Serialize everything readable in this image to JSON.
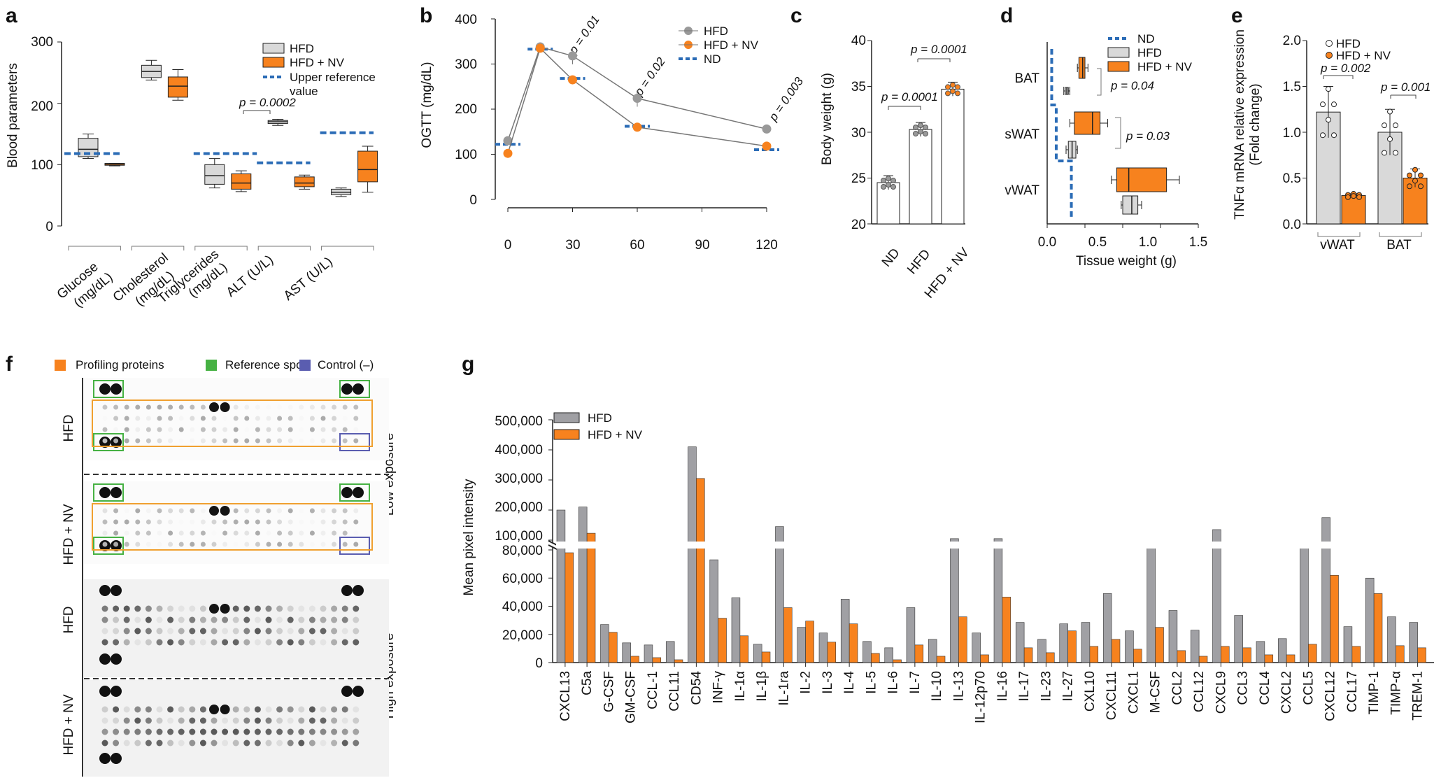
{
  "colors": {
    "hfd_box": "#d9d9d9",
    "nv": "#f7821e",
    "ref": "#2b6cb6",
    "gray_bar": "#a0a0a4",
    "green": "#46b143",
    "purple": "#5a5db0",
    "orange_box": "#f0a030",
    "dark": "#222222"
  },
  "panel_labels": {
    "a": "a",
    "b": "b",
    "c": "c",
    "d": "d",
    "e": "e",
    "f": "f",
    "g": "g"
  },
  "chart_data": [
    {
      "panel": "a",
      "type": "box",
      "ylabel": "Blood parameters",
      "ylim": [
        0,
        300
      ],
      "yticks": [
        "0",
        "100",
        "200",
        "300"
      ],
      "categories": [
        [
          "Glucose",
          "(mg/dL)"
        ],
        [
          "Cholesterol",
          "(mg/dL)"
        ],
        [
          "Triglycerides",
          "(mg/dL)"
        ],
        [
          "ALT (U/L)",
          ""
        ],
        [
          "AST (U/L)",
          ""
        ]
      ],
      "legend": [
        "HFD",
        "HFD + NV",
        "Upper reference",
        "value"
      ],
      "pvalue": "p = 0.0002",
      "reference": [
        118,
        null,
        118,
        103,
        152
      ],
      "series": [
        {
          "name": "HFD",
          "boxes": [
            [
              110,
              113,
              125,
              143,
              150
            ],
            [
              238,
              242,
              252,
              262,
              270
            ],
            [
              62,
              68,
              82,
              100,
              110
            ],
            [
              164,
              167,
              170,
              172,
              174
            ],
            [
              48,
              51,
              55,
              60,
              62
            ]
          ]
        },
        {
          "name": "HFD + NV",
          "boxes": [
            [
              98,
              99,
              101,
              102,
              102
            ],
            [
              205,
              210,
              228,
              243,
              255
            ],
            [
              56,
              60,
              70,
              85,
              90
            ],
            [
              60,
              64,
              70,
              80,
              83
            ],
            [
              55,
              72,
              92,
              122,
              130
            ]
          ]
        }
      ]
    },
    {
      "panel": "b",
      "type": "line",
      "ylabel": "OGTT (mg/dL)",
      "ylim": [
        0,
        400
      ],
      "yticks": [
        "0",
        "100",
        "200",
        "300",
        "400"
      ],
      "xticks": [
        "0",
        "30",
        "60",
        "90",
        "120"
      ],
      "x": [
        0,
        15,
        30,
        60,
        120
      ],
      "legend": [
        "HFD",
        "HFD + NV",
        "ND"
      ],
      "series": [
        {
          "name": "HFD",
          "values": [
            130,
            338,
            318,
            224,
            156
          ]
        },
        {
          "name": "HFD + NV",
          "values": [
            102,
            335,
            265,
            160,
            118
          ]
        }
      ],
      "nd": [
        122,
        333,
        268,
        162,
        110
      ],
      "pvalues": [
        "p = 0.01",
        "p = 0.02",
        "p = 0.003"
      ]
    },
    {
      "panel": "c",
      "type": "bar",
      "ylabel": "Body weight (g)",
      "ylim": [
        20,
        40
      ],
      "yticks": [
        "20",
        "25",
        "30",
        "35",
        "40"
      ],
      "categories": [
        "ND",
        "HFD",
        "HFD + NV"
      ],
      "values": [
        24.5,
        30.3,
        34.7
      ],
      "pvalues": [
        "p = 0.0001",
        "p = 0.0001"
      ]
    },
    {
      "panel": "d",
      "type": "box",
      "xlabel": "Tissue weight (g)",
      "xlim": [
        0,
        2
      ],
      "xticks": [
        "0.0",
        "0.5",
        "1.0",
        "1.5",
        "2.0"
      ],
      "categories": [
        "BAT",
        "sWAT",
        "vWAT"
      ],
      "legend": [
        "ND",
        "HFD",
        "HFD + NV"
      ],
      "pvalues": [
        "p = 0.04",
        "p = 0.03"
      ]
    },
    {
      "panel": "e",
      "type": "bar",
      "ylabel": "TNFα mRNA relative expression",
      "ylabel2": "(Fold change)",
      "ylim": [
        0,
        2
      ],
      "yticks": [
        "0.0",
        "0.5",
        "1.0",
        "1.5",
        "2.0"
      ],
      "categories": [
        "vWAT",
        "BAT"
      ],
      "legend": [
        "HFD",
        "HFD + NV"
      ],
      "series": [
        {
          "name": "HFD",
          "values": [
            1.22,
            1.0
          ]
        },
        {
          "name": "HFD + NV",
          "values": [
            0.31,
            0.5
          ]
        }
      ],
      "pvalues": [
        "p = 0.002",
        "p = 0.001"
      ]
    },
    {
      "panel": "f",
      "type": "image",
      "legend": [
        "Profiling proteins",
        "Reference spot",
        "Control (–)"
      ],
      "row_labels": [
        "HFD",
        "HFD + NV",
        "HFD",
        "HFD + NV"
      ],
      "side_labels": [
        "Low exposure",
        "High exposure"
      ]
    },
    {
      "panel": "g",
      "type": "bar",
      "ylabel": "Mean pixel intensity",
      "yticks_lower": [
        "0",
        "20,000",
        "40,000",
        "60,000",
        "80,000"
      ],
      "yticks_upper": [
        "100,000",
        "200,000",
        "300,000",
        "400,000",
        "500,000"
      ],
      "legend": [
        "HFD",
        "HFD + NV"
      ],
      "categories": [
        "CXCL13",
        "C5a",
        "G-CSF",
        "GM-CSF",
        "CCL-1",
        "CCL11",
        "CD54",
        "INF-γ",
        "IL-1α",
        "IL-1β",
        "IL-1ra",
        "IL-2",
        "IL-3",
        "IL-4",
        "IL-5",
        "IL-6",
        "IL-7",
        "IL-10",
        "IL-13",
        "IL-12p70",
        "IL-16",
        "IL-17",
        "IL-23",
        "IL-27",
        "CXL10",
        "CXCL11",
        "CXCL1",
        "M-CSF",
        "CCL2",
        "CCL12",
        "CXCL9",
        "CCL3",
        "CCL4",
        "CXCL2",
        "CCL5",
        "CXCL12",
        "CCL17",
        "TIMP-1",
        "TIMP-α",
        "TREM-1"
      ],
      "series": [
        {
          "name": "HFD",
          "values": [
            200000,
            210000,
            27000,
            14000,
            12500,
            15000,
            410000,
            73000,
            46000,
            13000,
            145000,
            25000,
            21000,
            45000,
            15000,
            10500,
            39000,
            16500,
            105000,
            21000,
            105000,
            28500,
            16500,
            27500,
            28500,
            49000,
            22500,
            85000,
            37000,
            23000,
            135000,
            33500,
            15000,
            17000,
            84000,
            175000,
            25500,
            60000,
            32500,
            28500
          ]
        },
        {
          "name": "HFD + NV",
          "values": [
            78000,
            123000,
            21500,
            4500,
            3500,
            2000,
            305000,
            31500,
            19000,
            7500,
            39000,
            29500,
            14500,
            27500,
            6500,
            2000,
            12500,
            4500,
            32500,
            5500,
            46500,
            10500,
            7000,
            22500,
            11500,
            16500,
            9500,
            25000,
            8500,
            4500,
            11500,
            10500,
            5500,
            5500,
            13000,
            62000,
            11500,
            49000,
            12000,
            10500
          ]
        }
      ]
    }
  ]
}
